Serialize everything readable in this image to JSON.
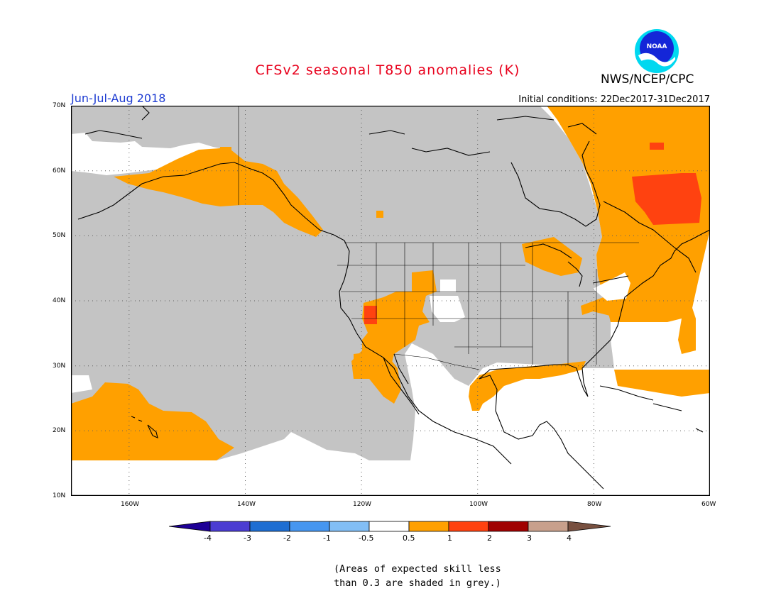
{
  "header": {
    "title": "CFSv2 seasonal T850 anomalies (K)",
    "agency": "NWS/NCEP/CPC",
    "season": "Jun-Jul-Aug 2018",
    "initial_conditions": "Initial conditions: 22Dec2017-31Dec2017",
    "logo_text": "NOAA",
    "title_color": "#e8001c",
    "season_color": "#1e3cd2"
  },
  "map": {
    "lat_labels": [
      "70N",
      "60N",
      "50N",
      "40N",
      "30N",
      "20N",
      "10N"
    ],
    "lon_labels": [
      "160W",
      "140W",
      "120W",
      "100W",
      "80W",
      "60W"
    ],
    "colors": {
      "grey_low_skill": "#c4c4c4",
      "anomaly_0.5_1": "#ffa000",
      "anomaly_1_2": "#ff4210",
      "no_anomaly": "#ffffff"
    }
  },
  "legend": {
    "labels": [
      "-4",
      "-3",
      "-2",
      "-1",
      "-0.5",
      "0.5",
      "1",
      "2",
      "3",
      "4"
    ],
    "colors": [
      "#1e0096",
      "#4b3cd2",
      "#1e6ed2",
      "#4696f0",
      "#82bef5",
      "#ffffff",
      "#ffa000",
      "#ff4210",
      "#a00000",
      "#c8a08c",
      "#785040"
    ]
  },
  "note": {
    "line1": "(Areas of expected skill less",
    "line2": "than 0.3 are shaded in grey.)"
  }
}
